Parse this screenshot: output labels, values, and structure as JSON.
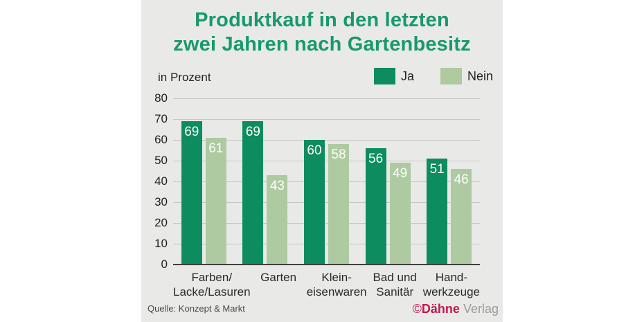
{
  "title": {
    "text": "Produktkauf in den letzten\nzwei Jahren nach Gartenbesitz"
  },
  "legend": {
    "items": [
      {
        "label": "Ja",
        "color": "#0d8c60"
      },
      {
        "label": "Nein",
        "color": "#aecaa1"
      }
    ]
  },
  "footer": {
    "source": "Quelle: Konzept & Markt",
    "watermark": {
      "symbol": "©",
      "brand": "Dähne",
      "suffix": "Verlag"
    }
  },
  "colors": {
    "title_green": "#17996e",
    "bar_ja": "#0d8c60",
    "bar_nein": "#aecaa1",
    "panel_background": "#e9e9e8",
    "gridline": "#c5c6c5",
    "baseline": "#3f3f3f",
    "watermark_red": "#c2194b"
  },
  "chart_data": {
    "type": "bar",
    "title": "Produktkauf in den letzten zwei Jahren nach Gartenbesitz",
    "xlabel": "",
    "ylabel": "in Prozent",
    "ylim": [
      0,
      80
    ],
    "ytick_step": 10,
    "grid": true,
    "legend_position": "top-right",
    "categories": [
      "Farben/\nLacke/Lasuren",
      "Garten",
      "Klein-\neisenwaren",
      "Bad und\nSanitär",
      "Hand-\nwerkzeuge"
    ],
    "series": [
      {
        "name": "Ja",
        "color": "#0d8c60",
        "values": [
          69,
          69,
          60,
          56,
          51
        ]
      },
      {
        "name": "Nein",
        "color": "#aecaa1",
        "values": [
          61,
          43,
          58,
          49,
          46
        ]
      }
    ]
  }
}
